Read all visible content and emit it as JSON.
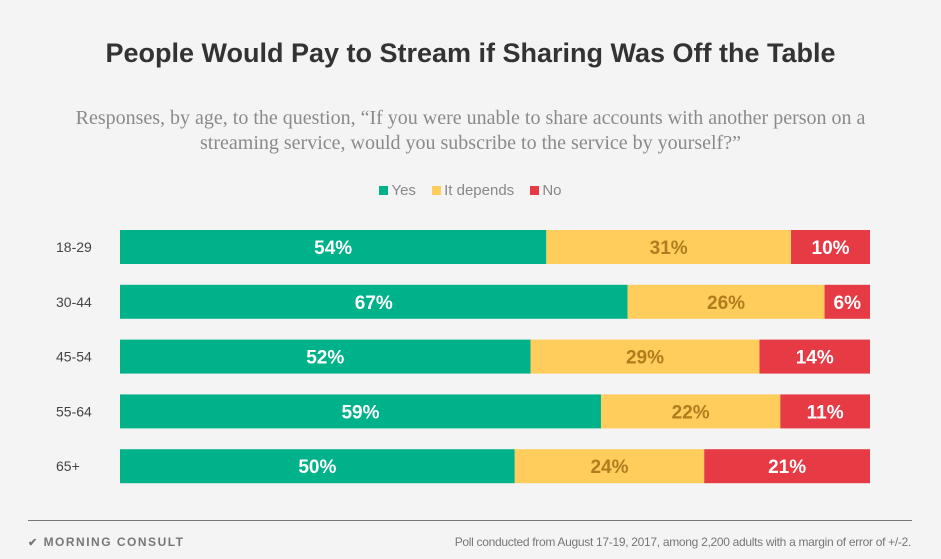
{
  "chart_data": {
    "type": "bar",
    "orientation": "horizontal",
    "stacked": true,
    "normalized": true,
    "title": "People Would Pay to Stream if Sharing Was Off the Table",
    "subtitle": "Responses, by age, to the question, “If you were unable to share accounts with another person on a streaming service, would you subscribe to the service by yourself?”",
    "categories": [
      "18-29",
      "30-44",
      "45-54",
      "55-64",
      "65+"
    ],
    "series": [
      {
        "name": "Yes",
        "color": "#00b28a",
        "label_color": "#ffffff",
        "values": [
          54,
          67,
          52,
          59,
          50
        ]
      },
      {
        "name": "It depends",
        "color": "#fecd5c",
        "label_color": "#b07d1e",
        "values": [
          31,
          26,
          29,
          22,
          24
        ]
      },
      {
        "name": "No",
        "color": "#e63a45",
        "label_color": "#ffffff",
        "values": [
          10,
          6,
          14,
          11,
          21
        ]
      }
    ],
    "value_suffix": "%",
    "legend_position": "top",
    "grid": false
  },
  "footer": {
    "logo": "MORNING CONSULT",
    "note": "Poll conducted from August 17-19, 2017, among 2,200 adults with a margin of error of +/-2."
  }
}
